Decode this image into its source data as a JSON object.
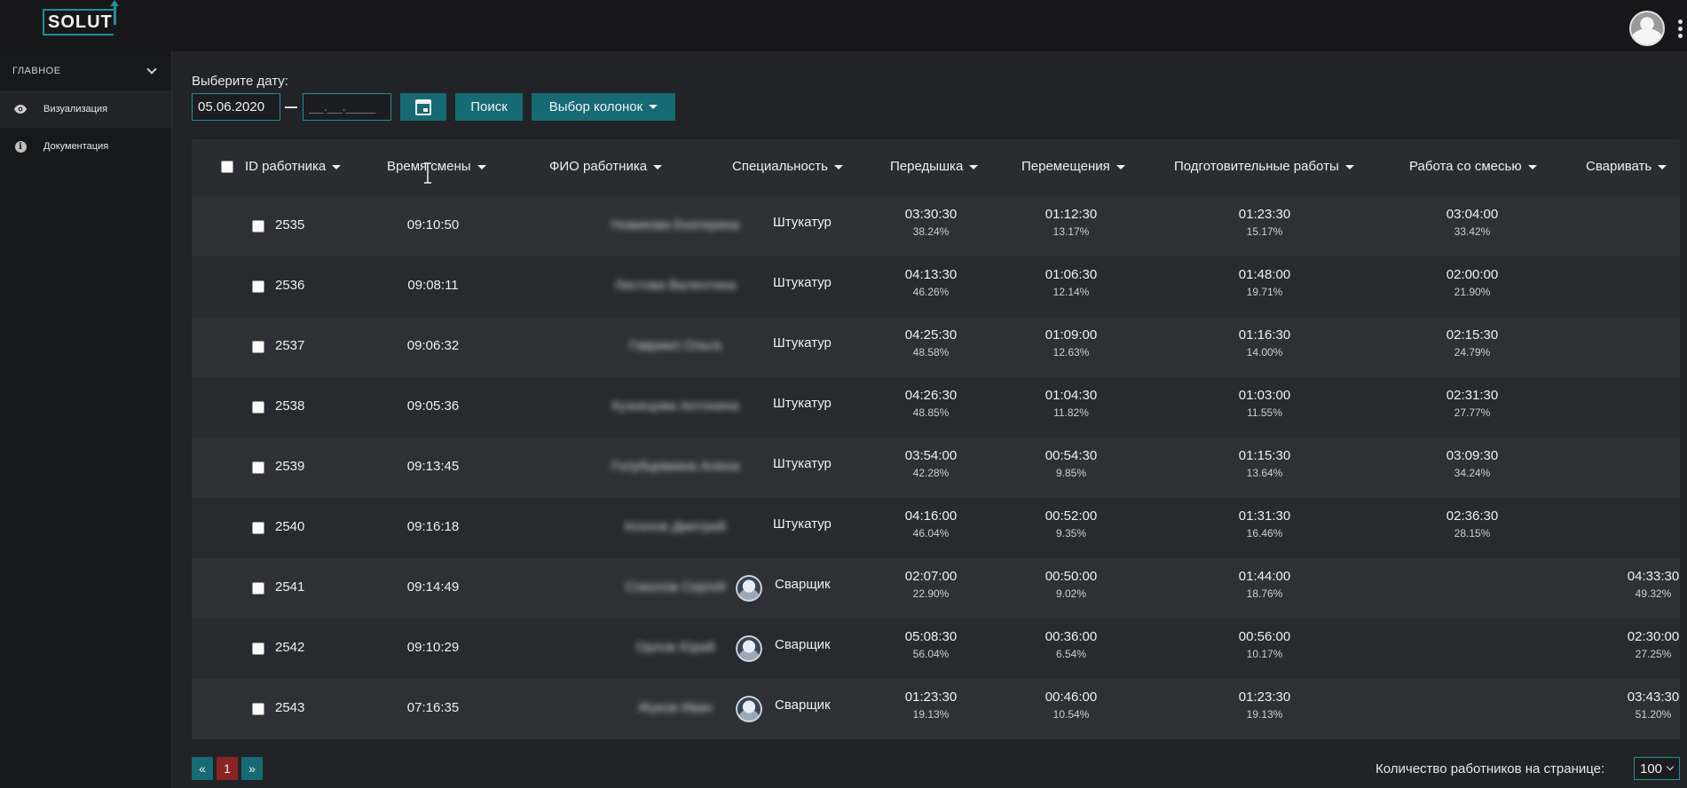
{
  "header": {
    "logo_text": "SOLUT"
  },
  "sidebar": {
    "section_label": "ГЛАВНОЕ",
    "items": [
      {
        "label": "Визуализация",
        "icon": "eye-icon",
        "active": true
      },
      {
        "label": "Документация",
        "icon": "info-icon",
        "active": false
      }
    ]
  },
  "filters": {
    "date_label": "Выберите дату:",
    "date_from": "05.06.2020",
    "date_to_placeholder": "__.__.____",
    "search_label": "Поиск",
    "columns_label": "Выбор колонок"
  },
  "table": {
    "headers": {
      "id": "ID работника",
      "shift": "Время смены",
      "name": "ФИО работника",
      "spec": "Специальность",
      "break": "Передышка",
      "move": "Перемещения",
      "prep": "Подготовительные работы",
      "mix": "Работа со смесью",
      "weld": "Сваривать"
    },
    "rows": [
      {
        "id": "2535",
        "shift": "09:10:50",
        "name": "Новикова Екатерина",
        "spec": "Штукатур",
        "spec_icon": "plasterer",
        "break": {
          "time": "03:30:30",
          "pct": "38.24%"
        },
        "move": {
          "time": "01:12:30",
          "pct": "13.17%"
        },
        "prep": {
          "time": "01:23:30",
          "pct": "15.17%"
        },
        "mix": {
          "time": "03:04:00",
          "pct": "33.42%"
        },
        "weld": {
          "time": "",
          "pct": ""
        }
      },
      {
        "id": "2536",
        "shift": "09:08:11",
        "name": "Листова Валентина",
        "spec": "Штукатур",
        "spec_icon": "plasterer",
        "break": {
          "time": "04:13:30",
          "pct": "46.26%"
        },
        "move": {
          "time": "01:06:30",
          "pct": "12.14%"
        },
        "prep": {
          "time": "01:48:00",
          "pct": "19.71%"
        },
        "mix": {
          "time": "02:00:00",
          "pct": "21.90%"
        },
        "weld": {
          "time": "",
          "pct": ""
        }
      },
      {
        "id": "2537",
        "shift": "09:06:32",
        "name": "Гавриил Ольга",
        "spec": "Штукатур",
        "spec_icon": "plasterer",
        "break": {
          "time": "04:25:30",
          "pct": "48.58%"
        },
        "move": {
          "time": "01:09:00",
          "pct": "12.63%"
        },
        "prep": {
          "time": "01:16:30",
          "pct": "14.00%"
        },
        "mix": {
          "time": "02:15:30",
          "pct": "24.79%"
        },
        "weld": {
          "time": "",
          "pct": ""
        }
      },
      {
        "id": "2538",
        "shift": "09:05:36",
        "name": "Кузнецова Антонина",
        "spec": "Штукатур",
        "spec_icon": "plasterer",
        "break": {
          "time": "04:26:30",
          "pct": "48.85%"
        },
        "move": {
          "time": "01:04:30",
          "pct": "11.82%"
        },
        "prep": {
          "time": "01:03:00",
          "pct": "11.55%"
        },
        "mix": {
          "time": "02:31:30",
          "pct": "27.77%"
        },
        "weld": {
          "time": "",
          "pct": ""
        }
      },
      {
        "id": "2539",
        "shift": "09:13:45",
        "name": "Голубцевкина Алена",
        "spec": "Штукатур",
        "spec_icon": "plasterer",
        "break": {
          "time": "03:54:00",
          "pct": "42.28%"
        },
        "move": {
          "time": "00:54:30",
          "pct": "9.85%"
        },
        "prep": {
          "time": "01:15:30",
          "pct": "13.64%"
        },
        "mix": {
          "time": "03:09:30",
          "pct": "34.24%"
        },
        "weld": {
          "time": "",
          "pct": ""
        }
      },
      {
        "id": "2540",
        "shift": "09:16:18",
        "name": "Козлов Дмитрий",
        "spec": "Штукатур",
        "spec_icon": "plasterer",
        "break": {
          "time": "04:16:00",
          "pct": "46.04%"
        },
        "move": {
          "time": "00:52:00",
          "pct": "9.35%"
        },
        "prep": {
          "time": "01:31:30",
          "pct": "16.46%"
        },
        "mix": {
          "time": "02:36:30",
          "pct": "28.15%"
        },
        "weld": {
          "time": "",
          "pct": ""
        }
      },
      {
        "id": "2541",
        "shift": "09:14:49",
        "name": "Соколов Сергей",
        "spec": "Сварщик",
        "spec_icon": "welder",
        "break": {
          "time": "02:07:00",
          "pct": "22.90%"
        },
        "move": {
          "time": "00:50:00",
          "pct": "9.02%"
        },
        "prep": {
          "time": "01:44:00",
          "pct": "18.76%"
        },
        "mix": {
          "time": "",
          "pct": ""
        },
        "weld": {
          "time": "04:33:30",
          "pct": "49.32%"
        }
      },
      {
        "id": "2542",
        "shift": "09:10:29",
        "name": "Орлов Юрий",
        "spec": "Сварщик",
        "spec_icon": "welder",
        "break": {
          "time": "05:08:30",
          "pct": "56.04%"
        },
        "move": {
          "time": "00:36:00",
          "pct": "6.54%"
        },
        "prep": {
          "time": "00:56:00",
          "pct": "10.17%"
        },
        "mix": {
          "time": "",
          "pct": ""
        },
        "weld": {
          "time": "02:30:00",
          "pct": "27.25%"
        }
      },
      {
        "id": "2543",
        "shift": "07:16:35",
        "name": "Жуков Иван",
        "spec": "Сварщик",
        "spec_icon": "welder",
        "break": {
          "time": "01:23:30",
          "pct": "19.13%"
        },
        "move": {
          "time": "00:46:00",
          "pct": "10.54%"
        },
        "prep": {
          "time": "01:23:30",
          "pct": "19.13%"
        },
        "mix": {
          "time": "",
          "pct": ""
        },
        "weld": {
          "time": "03:43:30",
          "pct": "51.20%"
        }
      }
    ]
  },
  "pagination": {
    "prev": "«",
    "current": "1",
    "next": "»",
    "per_page_label": "Количество работников на странице:",
    "per_page_value": "100"
  },
  "colors": {
    "accent": "#166a73",
    "accent_border": "#1f8f9c",
    "current_page": "#8b2323"
  }
}
